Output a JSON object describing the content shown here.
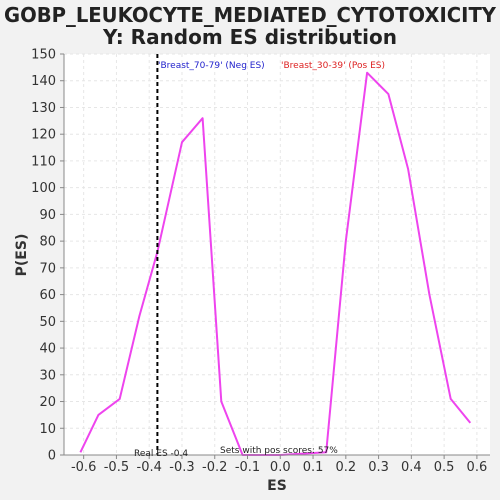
{
  "chart_data": {
    "type": "line",
    "title_line1": "GOBP_LEUKOCYTE_MEDIATED_CYTOTOXICITY",
    "title_line2": "Y: Random ES distribution",
    "xlabel": "ES",
    "ylabel": "P(ES)",
    "xlim": [
      -0.66,
      0.64
    ],
    "ylim": [
      0,
      150
    ],
    "x_ticks": [
      -0.6,
      -0.5,
      -0.4,
      -0.3,
      -0.2,
      -0.1,
      0.0,
      0.1,
      0.2,
      0.3,
      0.4,
      0.5,
      0.6
    ],
    "x_tick_labels": [
      "-0.6",
      "-0.5",
      "-0.4",
      "-0.3",
      "-0.2",
      "-0.1",
      "0.0",
      "0.1",
      "0.2",
      "0.3",
      "0.4",
      "0.5",
      "0.6"
    ],
    "y_ticks": [
      0,
      10,
      20,
      30,
      40,
      50,
      60,
      70,
      80,
      90,
      100,
      110,
      120,
      130,
      140,
      150
    ],
    "y_tick_labels": [
      "0",
      "10",
      "20",
      "30",
      "40",
      "50",
      "60",
      "70",
      "80",
      "90",
      "100",
      "110",
      "120",
      "130",
      "140",
      "150"
    ],
    "grid": true,
    "series": [
      {
        "color": "#ee44ee",
        "x": [
          -0.61,
          -0.555,
          -0.49,
          -0.43,
          -0.375,
          -0.3,
          -0.237,
          -0.18,
          -0.115,
          0.0,
          0.14,
          0.2,
          0.265,
          0.33,
          0.39,
          0.455,
          0.52,
          0.58
        ],
        "y": [
          1,
          15,
          21,
          52,
          76,
          117,
          126,
          20,
          0,
          0,
          1,
          80,
          143,
          135,
          107,
          60,
          21,
          12
        ]
      }
    ],
    "real_es": {
      "value": -0.375,
      "label": "Real ES -0.4",
      "color": "#000000"
    },
    "annotations": {
      "pos_scores_text": "Sets with pos scores: 57%",
      "neg_label": "'Breast_70-79' (Neg ES)",
      "neg_color": "#2222cc",
      "pos_label": "'Breast_30-39' (Pos ES)",
      "pos_color": "#dd2222"
    },
    "colors": {
      "background": "#f2f2f2",
      "plot_background": "#ffffff",
      "grid": "#e6e6e6",
      "axis": "#888888"
    }
  }
}
